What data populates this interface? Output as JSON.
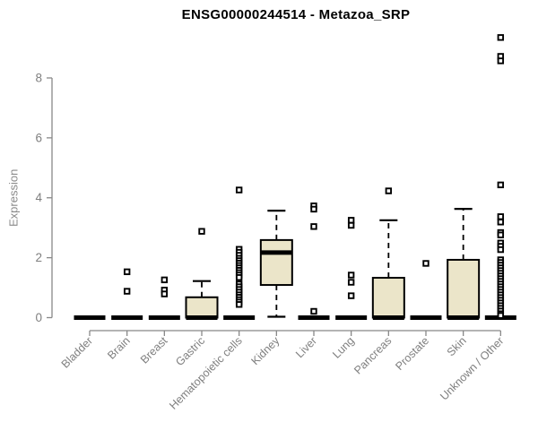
{
  "page": {
    "background": "#ffffff"
  },
  "chart_data": {
    "type": "boxplot",
    "title": "ENSG00000244514 - Metazoa_SRP",
    "ylabel": "Expression",
    "xlabel": "",
    "y_ticks": [
      0,
      2,
      4,
      6,
      8
    ],
    "ylim": [
      0,
      9.6
    ],
    "grid": false,
    "legend": "none",
    "categories": [
      "Bladder",
      "Brain",
      "Breast",
      "Gastric",
      "Hematopoietic cells",
      "Kidney",
      "Liver",
      "Lung",
      "Pancreas",
      "Prostate",
      "Skin",
      "Unknown / Other"
    ],
    "series": [
      {
        "label": "Bladder",
        "q1": 0,
        "median": 0,
        "q3": 0,
        "whisker_low": 0,
        "whisker_high": 0,
        "outliers": []
      },
      {
        "label": "Brain",
        "q1": 0,
        "median": 0,
        "q3": 0,
        "whisker_low": 0,
        "whisker_high": 0,
        "outliers": [
          1.53,
          0.88
        ]
      },
      {
        "label": "Breast",
        "q1": 0,
        "median": 0,
        "q3": 0,
        "whisker_low": 0,
        "whisker_high": 0,
        "outliers": [
          1.26,
          0.92,
          0.79
        ]
      },
      {
        "label": "Gastric",
        "q1": 0,
        "median": 0,
        "q3": 0.68,
        "whisker_low": 0,
        "whisker_high": 1.22,
        "outliers": [
          2.88
        ]
      },
      {
        "label": "Hematopoietic cells",
        "q1": 0,
        "median": 0,
        "q3": 0,
        "whisker_low": 0,
        "whisker_high": 0,
        "outliers": [
          4.26,
          2.28,
          2.18,
          2.08,
          1.98,
          1.9,
          1.82,
          1.74,
          1.66,
          1.58,
          1.5,
          1.42,
          1.34,
          1.12,
          1.03,
          0.94,
          0.85,
          0.76,
          0.68,
          0.6,
          0.52,
          0.44
        ]
      },
      {
        "label": "Kidney",
        "q1": 1.09,
        "median": 2.17,
        "q3": 2.59,
        "whisker_low": 0.03,
        "whisker_high": 3.57,
        "outliers": []
      },
      {
        "label": "Liver",
        "q1": 0,
        "median": 0,
        "q3": 0,
        "whisker_low": 0,
        "whisker_high": 0,
        "outliers": [
          3.73,
          3.62,
          3.04,
          0.21
        ]
      },
      {
        "label": "Lung",
        "q1": 0,
        "median": 0,
        "q3": 0,
        "whisker_low": 0,
        "whisker_high": 0,
        "outliers": [
          3.25,
          3.08,
          1.42,
          1.18,
          0.73
        ]
      },
      {
        "label": "Pancreas",
        "q1": 0,
        "median": 0,
        "q3": 1.33,
        "whisker_low": 0,
        "whisker_high": 3.25,
        "outliers": [
          4.23
        ]
      },
      {
        "label": "Prostate",
        "q1": 0,
        "median": 0,
        "q3": 0,
        "whisker_low": 0,
        "whisker_high": 0,
        "outliers": [
          1.81
        ]
      },
      {
        "label": "Skin",
        "q1": 0,
        "median": 0,
        "q3": 1.93,
        "whisker_low": 0,
        "whisker_high": 3.63,
        "outliers": []
      },
      {
        "label": "Unknown / Other",
        "q1": 0,
        "median": 0,
        "q3": 0,
        "whisker_low": 0,
        "whisker_high": 0,
        "outliers": [
          9.35,
          8.72,
          8.57,
          4.43,
          3.37,
          3.19,
          2.84,
          2.76,
          2.49,
          2.38,
          2.27,
          1.93,
          1.84,
          1.75,
          1.66,
          1.57,
          1.48,
          1.39,
          1.3,
          1.21,
          1.12,
          1.03,
          0.94,
          0.85,
          0.76,
          0.67,
          0.58,
          0.49,
          0.4,
          0.31,
          0.22,
          0.13,
          0.07
        ]
      }
    ],
    "colors": {
      "box_fill": "#ebe5c9",
      "box_stroke": "#000000",
      "median": "#000000",
      "whisker": "#000000",
      "outlier_stroke": "#000000",
      "outlier_fill": "#ffffff",
      "axis": "#888888",
      "tick_label_color": "#7f7f7f",
      "title_color": "#000000",
      "background": "#ffffff"
    }
  }
}
